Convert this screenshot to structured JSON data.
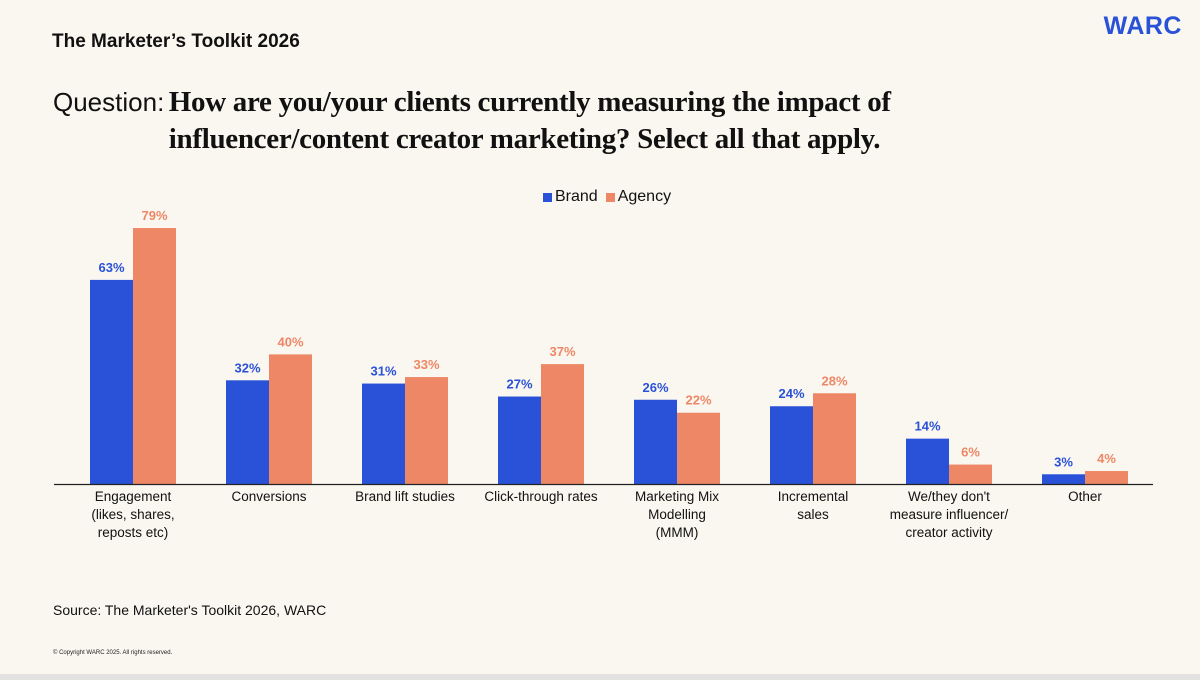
{
  "header": {
    "title": "The Marketer’s Toolkit 2026",
    "logo": "WARC"
  },
  "question": {
    "label": "Question:",
    "text": "How are you/your clients currently measuring the impact of influencer/content creator marketing? Select all that apply."
  },
  "colors": {
    "brand": "#2a52d8",
    "agency": "#ee8766",
    "background": "#faf7f0",
    "axis": "#222222"
  },
  "chart_data": {
    "type": "bar",
    "title": "How are you/your clients currently measuring the impact of influencer/content creator marketing? Select all that apply.",
    "xlabel": "",
    "ylabel": "",
    "ylim": [
      0,
      80
    ],
    "grid": false,
    "legend_position": "top-center",
    "value_suffix": "%",
    "categories": [
      [
        "Engagement",
        "(likes, shares,",
        "reposts etc)"
      ],
      [
        "Conversions"
      ],
      [
        "Brand lift studies"
      ],
      [
        "Click-through rates"
      ],
      [
        "Marketing Mix",
        "Modelling",
        "(MMM)"
      ],
      [
        "Incremental",
        "sales"
      ],
      [
        "We/they don't",
        "measure influencer/",
        "creator activity"
      ],
      [
        "Other"
      ]
    ],
    "series": [
      {
        "name": "Brand",
        "color": "#2a52d8",
        "values": [
          63,
          32,
          31,
          27,
          26,
          24,
          14,
          3
        ]
      },
      {
        "name": "Agency",
        "color": "#ee8766",
        "values": [
          79,
          40,
          33,
          37,
          22,
          28,
          6,
          4
        ]
      }
    ]
  },
  "footer": {
    "source": "Source: The Marketer's Toolkit 2026, WARC",
    "copyright": "© Copyright WARC 2025. All rights reserved."
  }
}
